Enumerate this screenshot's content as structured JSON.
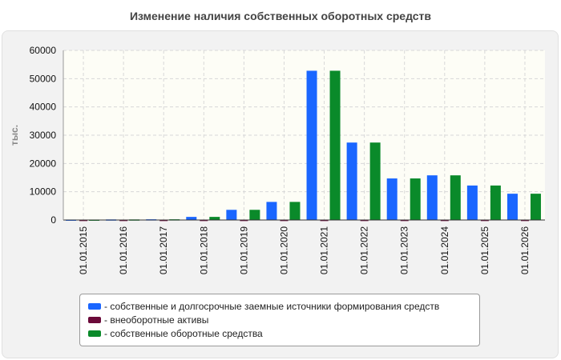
{
  "title": "Изменение наличия собственных оборотных средств",
  "chart_data": {
    "type": "bar",
    "title": "Изменение наличия собственных оборотных средств",
    "xlabel": "",
    "ylabel": "тыс.",
    "ylim": [
      0,
      60000
    ],
    "yticks": [
      0,
      10000,
      20000,
      30000,
      40000,
      50000,
      60000
    ],
    "grid": true,
    "legend_position": "bottom",
    "categories": [
      "01.01.2015",
      "01.01.2016",
      "01.01.2017",
      "01.01.2018",
      "01.01.2019",
      "01.01.2020",
      "01.01.2021",
      "01.01.2022",
      "01.01.2023",
      "01.01.2024",
      "01.01.2025",
      "01.01.2026"
    ],
    "series": [
      {
        "name": "- собственные и долгосрочные заемные источники формирования средств",
        "color": "#1a66ff",
        "values": [
          150,
          200,
          250,
          1100,
          3600,
          6400,
          52800,
          27400,
          14700,
          15800,
          12200,
          9300
        ]
      },
      {
        "name": "- внеоборотные активы",
        "color": "#6b0a3a",
        "values": [
          50,
          50,
          50,
          50,
          50,
          50,
          50,
          50,
          50,
          50,
          50,
          50
        ]
      },
      {
        "name": "- собственные оборотные средства",
        "color": "#0a8a2a",
        "values": [
          150,
          200,
          250,
          1100,
          3600,
          6400,
          52800,
          27400,
          14700,
          15800,
          12200,
          9300
        ]
      }
    ]
  }
}
